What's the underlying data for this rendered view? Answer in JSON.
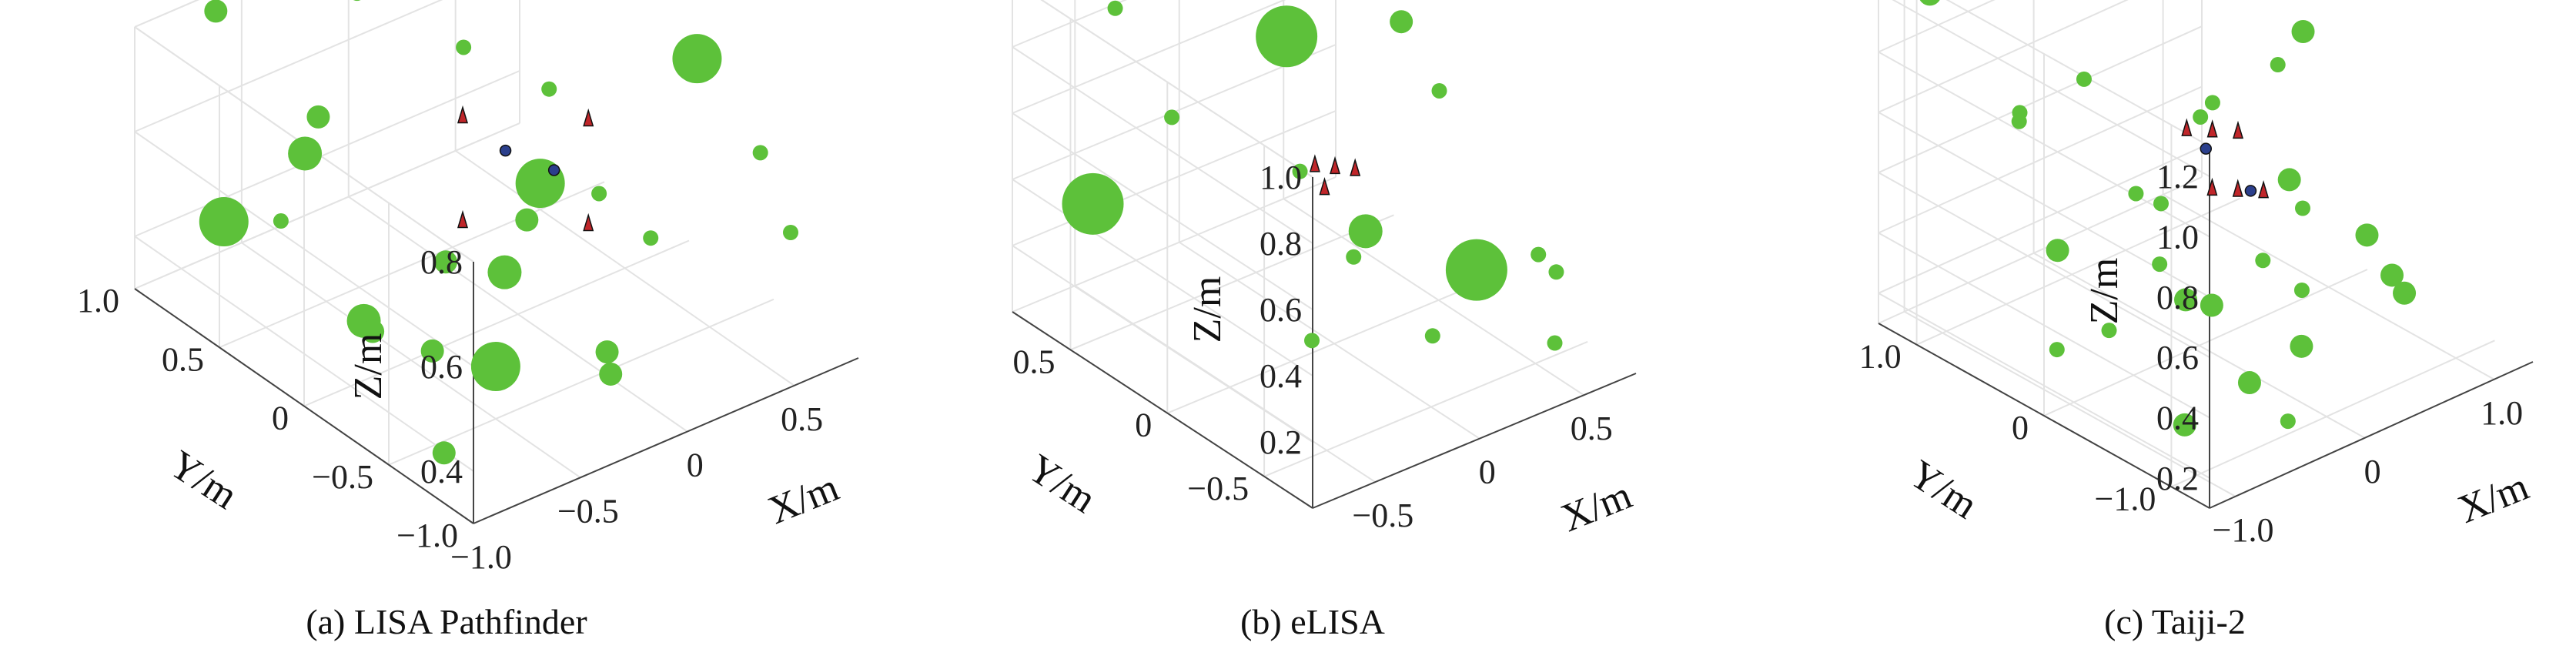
{
  "colors": {
    "sphere": "#5dc13a",
    "marker_red": "#c0262a",
    "marker_blue": "#2b3f8c",
    "grid": "#e3e3e3",
    "axis": "#444444"
  },
  "chart_data": [
    {
      "type": "scatter3d",
      "caption": "(a) LISA Pathfinder",
      "xlabel": "X/m",
      "ylabel": "Y/m",
      "zlabel": "Z/m",
      "xlim": [
        -1.0,
        0.8
      ],
      "ylim": [
        -1.0,
        1.0
      ],
      "zlim": [
        0.3,
        0.8
      ],
      "x_ticks": [
        "−1.0",
        "−0.5",
        "0",
        "0.5"
      ],
      "x_tick_values": [
        -1.0,
        -0.5,
        0,
        0.5
      ],
      "y_ticks": [
        "−1.0",
        "−0.5",
        "0",
        "0.5",
        "1.0"
      ],
      "y_tick_values": [
        -1.0,
        -0.5,
        0,
        0.5,
        1.0
      ],
      "z_ticks": [
        "0.4",
        "0.6",
        "0.8"
      ],
      "z_tick_values": [
        0.4,
        0.6,
        0.8
      ],
      "grid": true,
      "spheres": [
        [
          -0.7,
          0.9,
          0.8,
          2
        ],
        [
          -0.9,
          0.6,
          0.5,
          4
        ],
        [
          -0.6,
          0.5,
          0.6,
          3
        ],
        [
          -0.3,
          0.8,
          0.55,
          2
        ],
        [
          0.6,
          -0.3,
          0.75,
          4
        ],
        [
          0.2,
          0.2,
          0.4,
          2
        ],
        [
          -0.8,
          -0.1,
          0.45,
          3
        ],
        [
          -0.5,
          -0.5,
          0.4,
          4
        ],
        [
          0.5,
          0.5,
          0.35,
          4
        ],
        [
          -0.2,
          -0.8,
          0.4,
          2
        ],
        [
          0.1,
          -0.4,
          0.3,
          2
        ],
        [
          0.7,
          0.1,
          0.3,
          1
        ],
        [
          -0.6,
          0.1,
          0.35,
          2
        ],
        [
          0.3,
          0.7,
          0.6,
          1
        ],
        [
          -0.9,
          -0.7,
          0.35,
          2
        ],
        [
          0.5,
          -0.8,
          0.7,
          1
        ],
        [
          -0.1,
          0.3,
          0.35,
          2
        ],
        [
          0.7,
          0.7,
          0.45,
          1
        ],
        [
          -0.4,
          0.0,
          0.3,
          2
        ],
        [
          0.3,
          -0.1,
          0.5,
          1
        ],
        [
          -0.95,
          0.2,
          0.6,
          1
        ],
        [
          0.0,
          0.95,
          0.7,
          1
        ],
        [
          0.8,
          -0.6,
          0.45,
          1
        ],
        [
          -0.3,
          -0.3,
          0.5,
          3
        ]
      ],
      "markers": [
        {
          "x": -0.1,
          "y": 0.2,
          "z": 0.65,
          "color": "red"
        },
        {
          "x": 0.25,
          "y": -0.1,
          "z": 0.65,
          "color": "red"
        },
        {
          "x": -0.1,
          "y": 0.2,
          "z": 0.45,
          "color": "red"
        },
        {
          "x": 0.25,
          "y": -0.1,
          "z": 0.45,
          "color": "red"
        },
        {
          "x": 0.1,
          "y": 0.2,
          "z": 0.55,
          "color": "blue"
        },
        {
          "x": 0.05,
          "y": -0.15,
          "z": 0.6,
          "color": "blue"
        }
      ]
    },
    {
      "type": "scatter3d",
      "caption": "(b) eLISA",
      "xlabel": "X/m",
      "ylabel": "Y/m",
      "zlabel": "",
      "xlim": [
        -0.8,
        0.75
      ],
      "ylim": [
        -0.75,
        0.8
      ],
      "zlim": [
        0.0,
        1.0
      ],
      "x_ticks": [
        "−0.5",
        "0",
        "0.5"
      ],
      "x_tick_values": [
        -0.5,
        0,
        0.5
      ],
      "y_ticks": [
        "−0.5",
        "0",
        "0.5"
      ],
      "y_tick_values": [
        -0.5,
        0,
        0.5
      ],
      "z_ticks": [
        "0.2",
        "0.4",
        "0.6",
        "0.8",
        "1.0"
      ],
      "z_tick_values": [
        0.2,
        0.4,
        0.6,
        0.8,
        1.0
      ],
      "z_label_text": "Z/m",
      "grid": true,
      "spheres": [
        [
          -0.6,
          0.6,
          0.35,
          5
        ],
        [
          0.05,
          0.3,
          0.8,
          5
        ],
        [
          0.45,
          -0.25,
          0.2,
          5
        ],
        [
          0.15,
          0.0,
          0.3,
          3
        ],
        [
          0.6,
          0.3,
          0.7,
          2
        ],
        [
          0.55,
          0.05,
          0.6,
          1
        ],
        [
          -0.2,
          -0.1,
          0.1,
          1
        ],
        [
          0.1,
          -0.4,
          0.15,
          1
        ],
        [
          0.5,
          -0.6,
          0.1,
          1
        ],
        [
          -0.4,
          0.7,
          0.85,
          1
        ],
        [
          0.7,
          -0.3,
          0.2,
          1
        ],
        [
          0.0,
          -0.1,
          0.3,
          1
        ],
        [
          0.3,
          0.5,
          0.25,
          1
        ],
        [
          -0.5,
          0.3,
          0.7,
          1
        ],
        [
          0.6,
          -0.5,
          0.25,
          1
        ]
      ],
      "markers": [
        {
          "x": 0.0,
          "y": 0.1,
          "z": 0.5,
          "color": "red"
        },
        {
          "x": 0.05,
          "y": 0.05,
          "z": 0.5,
          "color": "red"
        },
        {
          "x": 0.1,
          "y": 0.0,
          "z": 0.5,
          "color": "red"
        },
        {
          "x": 0.0,
          "y": 0.05,
          "z": 0.45,
          "color": "red"
        }
      ]
    },
    {
      "type": "scatter3d",
      "caption": "(c) Taiji-2",
      "xlabel": "X/m",
      "ylabel": "Y/m",
      "zlabel": "Z/m",
      "xlim": [
        -1.2,
        1.3
      ],
      "ylim": [
        -1.3,
        1.3
      ],
      "zlim": [
        0.1,
        1.3
      ],
      "x_ticks": [
        "−1.0",
        "0",
        "1.0"
      ],
      "x_tick_values": [
        -1.0,
        0,
        1.0
      ],
      "y_ticks": [
        "−1.0",
        "0",
        "1.0"
      ],
      "y_tick_values": [
        -1.0,
        0,
        1.0
      ],
      "z_ticks": [
        "0.2",
        "0.4",
        "0.6",
        "0.8",
        "1.0",
        "1.2"
      ],
      "z_tick_values": [
        0.2,
        0.4,
        0.6,
        0.8,
        1.0,
        1.2
      ],
      "grid": true,
      "spheres": [
        [
          -1.0,
          1.1,
          1.2,
          2
        ],
        [
          0.3,
          1.0,
          1.1,
          2
        ],
        [
          1.0,
          0.2,
          0.9,
          2
        ],
        [
          -0.3,
          0.6,
          0.9,
          1
        ],
        [
          -0.8,
          0.3,
          0.5,
          2
        ],
        [
          0.5,
          -0.2,
          0.6,
          2
        ],
        [
          -0.4,
          -0.3,
          0.4,
          2
        ],
        [
          0.2,
          -0.6,
          0.2,
          2
        ],
        [
          0.9,
          -0.6,
          0.3,
          2
        ],
        [
          -0.9,
          -0.8,
          0.2,
          2
        ],
        [
          0.7,
          -0.9,
          0.35,
          2
        ],
        [
          -0.2,
          -0.9,
          0.1,
          1
        ],
        [
          0.0,
          0.3,
          0.5,
          1
        ],
        [
          0.6,
          0.6,
          0.6,
          1
        ],
        [
          -0.6,
          0.8,
          0.8,
          1
        ],
        [
          1.1,
          -0.2,
          0.3,
          2
        ],
        [
          -0.1,
          -0.2,
          0.3,
          2
        ],
        [
          0.3,
          0.2,
          0.8,
          1
        ],
        [
          -1.1,
          0.0,
          0.3,
          1
        ],
        [
          0.8,
          0.0,
          0.4,
          1
        ],
        [
          -0.5,
          0.2,
          0.2,
          1
        ],
        [
          0.4,
          -0.4,
          0.3,
          1
        ],
        [
          -0.7,
          -0.4,
          0.6,
          1
        ],
        [
          0.2,
          0.7,
          0.4,
          1
        ],
        [
          0.0,
          -0.5,
          0.5,
          1
        ],
        [
          -0.3,
          -0.7,
          0.2,
          2
        ],
        [
          1.1,
          0.5,
          0.7,
          1
        ],
        [
          -0.9,
          0.5,
          0.9,
          1
        ]
      ],
      "markers": [
        {
          "x": 0.1,
          "y": 0.2,
          "z": 0.75,
          "color": "red"
        },
        {
          "x": 0.2,
          "y": 0.1,
          "z": 0.75,
          "color": "red"
        },
        {
          "x": 0.3,
          "y": 0.0,
          "z": 0.75,
          "color": "red"
        },
        {
          "x": 0.1,
          "y": 0.0,
          "z": 0.6,
          "color": "red"
        },
        {
          "x": 0.2,
          "y": -0.1,
          "z": 0.6,
          "color": "red"
        },
        {
          "x": 0.3,
          "y": -0.2,
          "z": 0.6,
          "color": "red"
        },
        {
          "x": 0.15,
          "y": 0.1,
          "z": 0.7,
          "color": "blue"
        },
        {
          "x": 0.25,
          "y": -0.15,
          "z": 0.6,
          "color": "blue"
        }
      ]
    }
  ]
}
